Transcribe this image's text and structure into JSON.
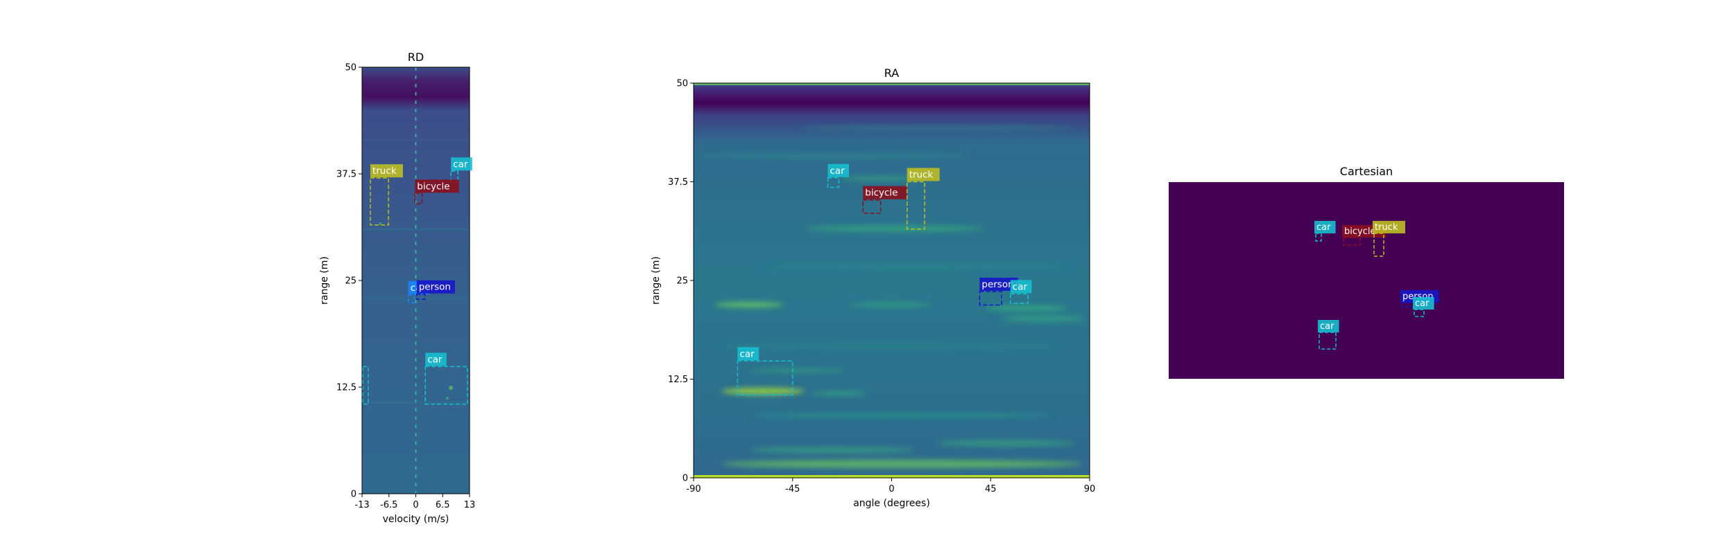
{
  "chart_data": [
    {
      "type": "heatmap",
      "title": "RD",
      "xlabel": "velocity (m/s)",
      "ylabel": "range (m)",
      "xlim": [
        -13,
        13
      ],
      "ylim": [
        0,
        50
      ],
      "xticks": [
        "-13",
        "-6.5",
        "0",
        "6.5",
        "13"
      ],
      "yticks": [
        "0",
        "12.5",
        "25",
        "37.5",
        "50"
      ],
      "colormap": "viridis",
      "detections": [
        {
          "label": "truck",
          "color": "#bcbd22",
          "x": [
            -11,
            -6.6
          ],
          "y": [
            31.5,
            37
          ]
        },
        {
          "label": "car",
          "color": "#17becf",
          "x": [
            8.5,
            10.2
          ],
          "y": [
            36.5,
            37.8
          ]
        },
        {
          "label": "bicycle",
          "color": "#8b0f1e",
          "x": [
            -0.2,
            1.5
          ],
          "y": [
            34,
            35.2
          ]
        },
        {
          "label": "car",
          "color": "#1a84ff",
          "x": [
            -1.8,
            -0.4
          ],
          "y": [
            22.4,
            23.3
          ]
        },
        {
          "label": "person",
          "color": "#1616c8",
          "x": [
            0.2,
            2.2
          ],
          "y": [
            22.8,
            23.4
          ]
        },
        {
          "label": "car",
          "color": "#17becf",
          "x": [
            2.3,
            12.5
          ],
          "y": [
            10.5,
            14.9
          ]
        },
        {
          "label": "",
          "color": "#17becf",
          "x": [
            -12.8,
            -11.5
          ],
          "y": [
            10.5,
            14.9
          ]
        }
      ]
    },
    {
      "type": "heatmap",
      "title": "RA",
      "xlabel": "angle (degrees)",
      "ylabel": "range (m)",
      "xlim": [
        -90,
        90
      ],
      "ylim": [
        0,
        50
      ],
      "xticks": [
        "-90",
        "-45",
        "0",
        "45",
        "90"
      ],
      "yticks": [
        "0",
        "12.5",
        "25",
        "37.5",
        "50"
      ],
      "colormap": "viridis",
      "detections": [
        {
          "label": "car",
          "color": "#17becf",
          "x": [
            -29,
            -24
          ],
          "y": [
            36.8,
            38
          ]
        },
        {
          "label": "bicycle",
          "color": "#8b0f1e",
          "x": [
            -13,
            -5
          ],
          "y": [
            33.5,
            35.2
          ]
        },
        {
          "label": "truck",
          "color": "#bcbd22",
          "x": [
            7,
            15
          ],
          "y": [
            31.5,
            37.5
          ]
        },
        {
          "label": "person",
          "color": "#1616c8",
          "x": [
            40,
            50
          ],
          "y": [
            21.9,
            23.6
          ]
        },
        {
          "label": "car",
          "color": "#17becf",
          "x": [
            54,
            62
          ],
          "y": [
            22.1,
            23.3
          ]
        },
        {
          "label": "car",
          "color": "#17becf",
          "x": [
            -70,
            -45
          ],
          "y": [
            10.5,
            14.8
          ]
        }
      ]
    },
    {
      "type": "heatmap",
      "title": "Cartesian",
      "background_color": "#440154",
      "detections": [
        {
          "label": "car",
          "color": "#17becf"
        },
        {
          "label": "bicycle",
          "color": "#8b0f1e"
        },
        {
          "label": "truck",
          "color": "#bcbd22"
        },
        {
          "label": "person",
          "color": "#1616c8"
        },
        {
          "label": "car",
          "color": "#17becf"
        },
        {
          "label": "car",
          "color": "#17becf"
        }
      ]
    }
  ]
}
